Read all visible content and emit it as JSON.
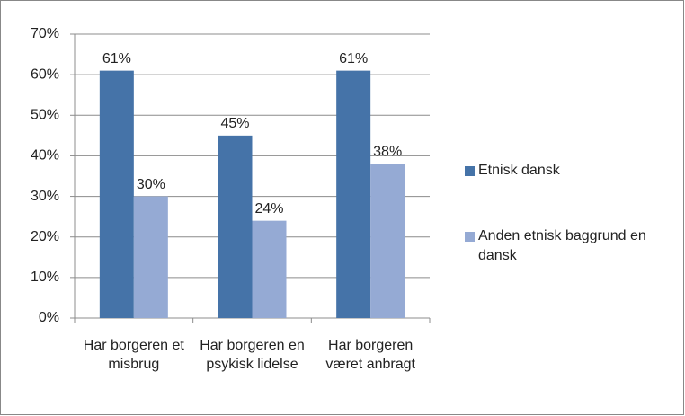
{
  "chart_data": {
    "type": "bar",
    "categories": [
      "Har borgeren et misbrug",
      "Har borgeren en psykisk lidelse",
      "Har borgeren været anbragt"
    ],
    "series": [
      {
        "name": "Etnisk dansk",
        "color": "#4573a8",
        "values": [
          61,
          45,
          61
        ],
        "value_labels": [
          "61%",
          "45%",
          "61%"
        ]
      },
      {
        "name": "Anden etnisk baggrund en dansk",
        "color": "#95aad4",
        "values": [
          30,
          24,
          38
        ],
        "value_labels": [
          "30%",
          "24%",
          "38%"
        ]
      }
    ],
    "ylim": [
      0,
      70
    ],
    "yticks": [
      {
        "value": 0,
        "label": "0%"
      },
      {
        "value": 10,
        "label": "10%"
      },
      {
        "value": 20,
        "label": "20%"
      },
      {
        "value": 30,
        "label": "30%"
      },
      {
        "value": 40,
        "label": "40%"
      },
      {
        "value": 50,
        "label": "50%"
      },
      {
        "value": 60,
        "label": "60%"
      },
      {
        "value": 70,
        "label": "70%"
      }
    ],
    "grid": true,
    "legend": "right"
  }
}
